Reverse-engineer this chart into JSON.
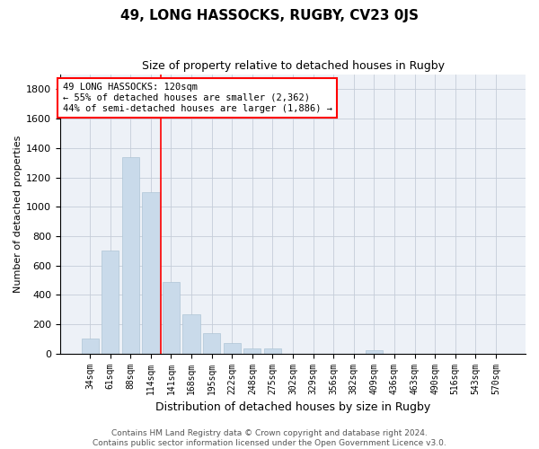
{
  "title1": "49, LONG HASSOCKS, RUGBY, CV23 0JS",
  "title2": "Size of property relative to detached houses in Rugby",
  "xlabel": "Distribution of detached houses by size in Rugby",
  "ylabel": "Number of detached properties",
  "categories": [
    "34sqm",
    "61sqm",
    "88sqm",
    "114sqm",
    "141sqm",
    "168sqm",
    "195sqm",
    "222sqm",
    "248sqm",
    "275sqm",
    "302sqm",
    "329sqm",
    "356sqm",
    "382sqm",
    "409sqm",
    "436sqm",
    "463sqm",
    "490sqm",
    "516sqm",
    "543sqm",
    "570sqm"
  ],
  "values": [
    100,
    700,
    1340,
    1100,
    490,
    270,
    140,
    70,
    35,
    35,
    0,
    0,
    0,
    0,
    20,
    0,
    0,
    0,
    0,
    0,
    0
  ],
  "bar_color": "#c9daea",
  "bar_edge_color": "#aec4d6",
  "vline_x": 3.5,
  "vline_color": "red",
  "annotation_text": "49 LONG HASSOCKS: 120sqm\n← 55% of detached houses are smaller (2,362)\n44% of semi-detached houses are larger (1,886) →",
  "annotation_box_color": "white",
  "annotation_box_edge_color": "red",
  "ylim": [
    0,
    1900
  ],
  "yticks": [
    0,
    200,
    400,
    600,
    800,
    1000,
    1200,
    1400,
    1600,
    1800
  ],
  "footer1": "Contains HM Land Registry data © Crown copyright and database right 2024.",
  "footer2": "Contains public sector information licensed under the Open Government Licence v3.0.",
  "background_color": "#edf1f7",
  "grid_color": "#c5cdd8",
  "title1_fontsize": 11,
  "title2_fontsize": 9,
  "ylabel_fontsize": 8,
  "xlabel_fontsize": 9,
  "tick_fontsize": 7,
  "annot_fontsize": 7.5,
  "footer_fontsize": 6.5
}
